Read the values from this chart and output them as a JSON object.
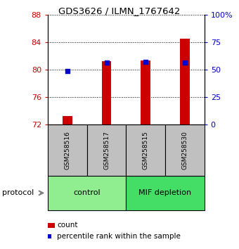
{
  "title": "GDS3626 / ILMN_1767642",
  "samples": [
    "GSM258516",
    "GSM258517",
    "GSM258515",
    "GSM258530"
  ],
  "red_values": [
    73.2,
    81.2,
    81.3,
    84.5
  ],
  "blue_values": [
    79.8,
    81.0,
    81.1,
    81.0
  ],
  "y_min": 72,
  "y_max": 88,
  "y_ticks": [
    72,
    76,
    80,
    84,
    88
  ],
  "right_y_ticks": [
    0,
    25,
    50,
    75,
    100
  ],
  "right_y_tick_labels": [
    "0",
    "25",
    "50",
    "75",
    "100%"
  ],
  "groups": [
    {
      "label": "control",
      "start": 0,
      "end": 2,
      "color": "#90EE90"
    },
    {
      "label": "MIF depletion",
      "start": 2,
      "end": 4,
      "color": "#44DD66"
    }
  ],
  "bar_color": "#CC0000",
  "dot_color": "#0000CC",
  "left_tick_color": "#CC0000",
  "right_tick_color": "#0000CC",
  "bar_width": 0.25,
  "background_color": "#ffffff",
  "plot_bg": "#ffffff",
  "grid_color": "#000000",
  "sample_box_color": "#C0C0C0",
  "protocol_arrow_color": "#808080",
  "legend_count_color": "#CC0000",
  "legend_pct_color": "#0000CC"
}
